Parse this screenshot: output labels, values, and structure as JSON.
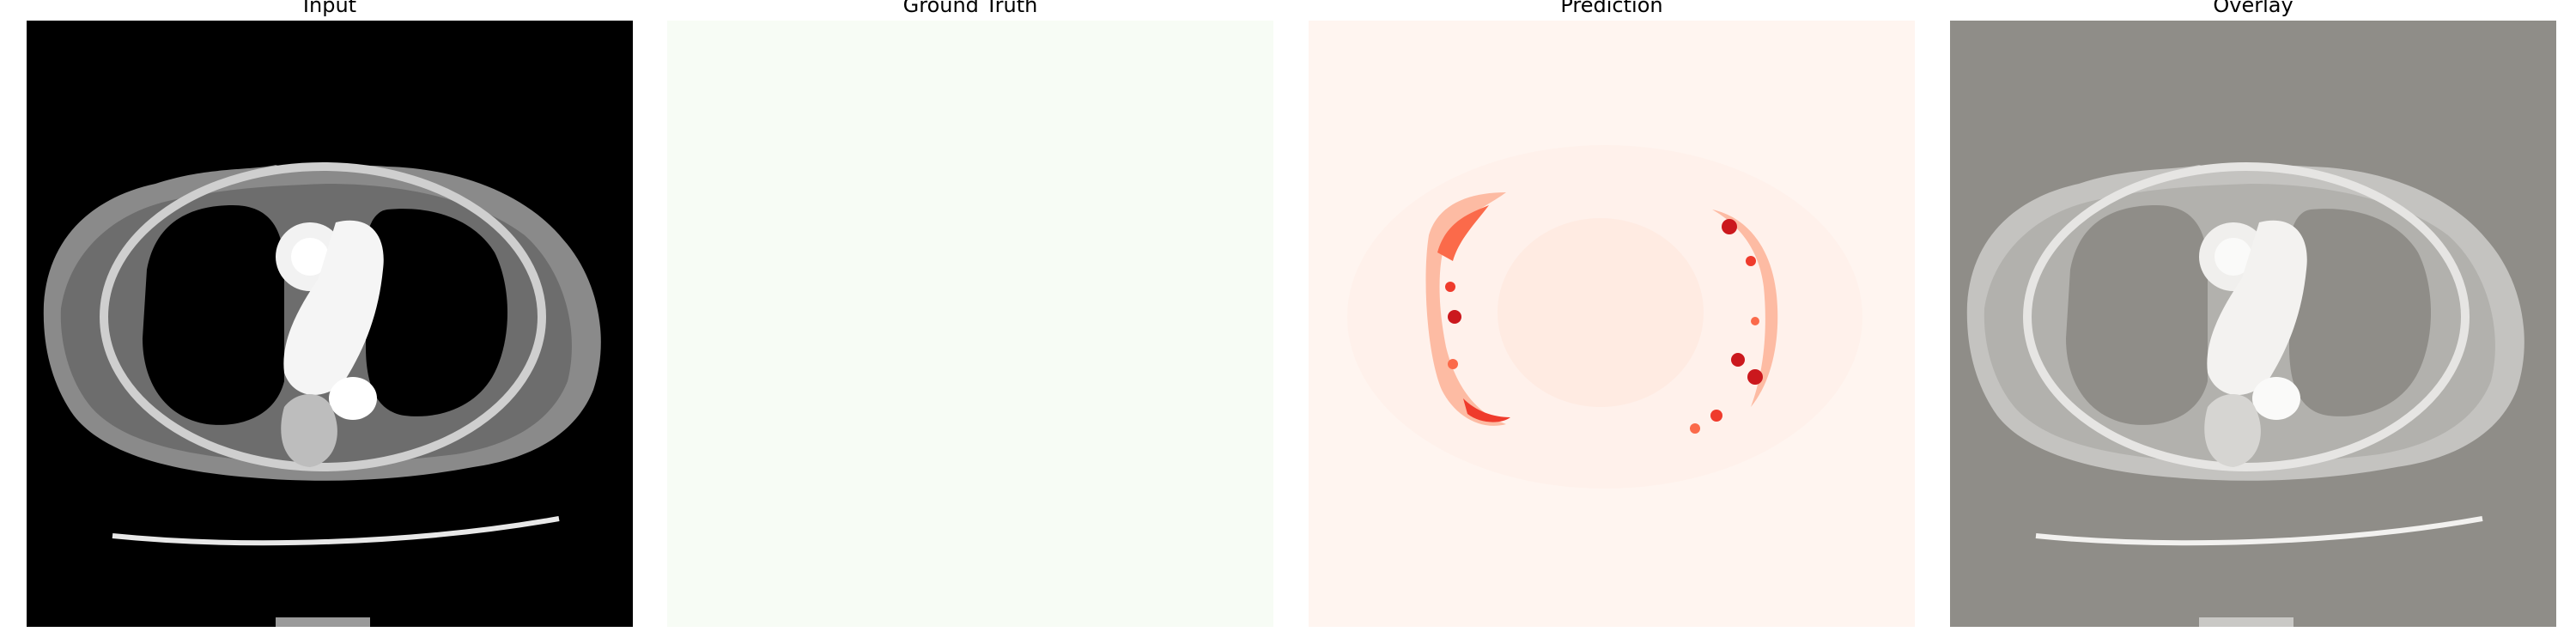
{
  "panels": [
    {
      "title": "Input",
      "image": "ct-scan-axial-chest"
    },
    {
      "title": "Ground Truth",
      "image": "empty-mask",
      "color": "#f7fcf5"
    },
    {
      "title": "Prediction",
      "image": "probability-heatmap-reds",
      "color": "#fff5f0",
      "accent": "#cb181d"
    },
    {
      "title": "Overlay",
      "image": "ct-scan-overlay-gray",
      "color": "#8f8d88"
    }
  ]
}
